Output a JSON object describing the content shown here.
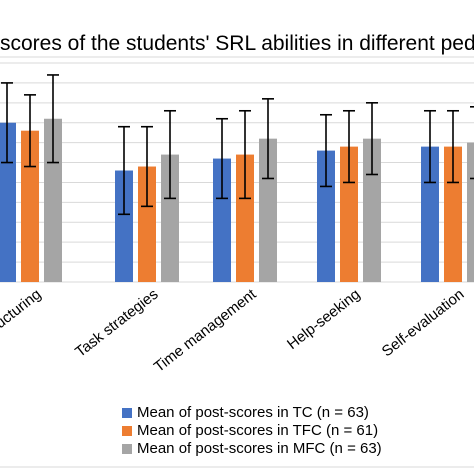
{
  "chart_data": {
    "type": "bar",
    "title": "scores of the students' SRL abilities in different peda",
    "categories": [
      "ucturing",
      "Task strategies",
      "Time management",
      "Help-seeking",
      "Self-evaluation"
    ],
    "series": [
      {
        "name": "Mean of post-scores in TC (n = 63)",
        "color": "#4472c4",
        "values": [
          4.0,
          3.4,
          3.55,
          3.65,
          3.7
        ],
        "error": [
          0.5,
          0.55,
          0.5,
          0.45,
          0.45
        ]
      },
      {
        "name": "Mean of post-scores in TFC (n = 61)",
        "color": "#ed7d31",
        "values": [
          3.9,
          3.45,
          3.6,
          3.7,
          3.7
        ],
        "error": [
          0.45,
          0.5,
          0.55,
          0.45,
          0.45
        ]
      },
      {
        "name": "Mean of post-scores in MFC (n = 63)",
        "color": "#a5a5a5",
        "values": [
          4.05,
          3.6,
          3.8,
          3.8,
          3.75
        ],
        "error": [
          0.55,
          0.55,
          0.5,
          0.45,
          0.45
        ]
      }
    ],
    "ylim": [
      2.0,
      4.75
    ],
    "grid": true,
    "legend_position": "bottom"
  }
}
